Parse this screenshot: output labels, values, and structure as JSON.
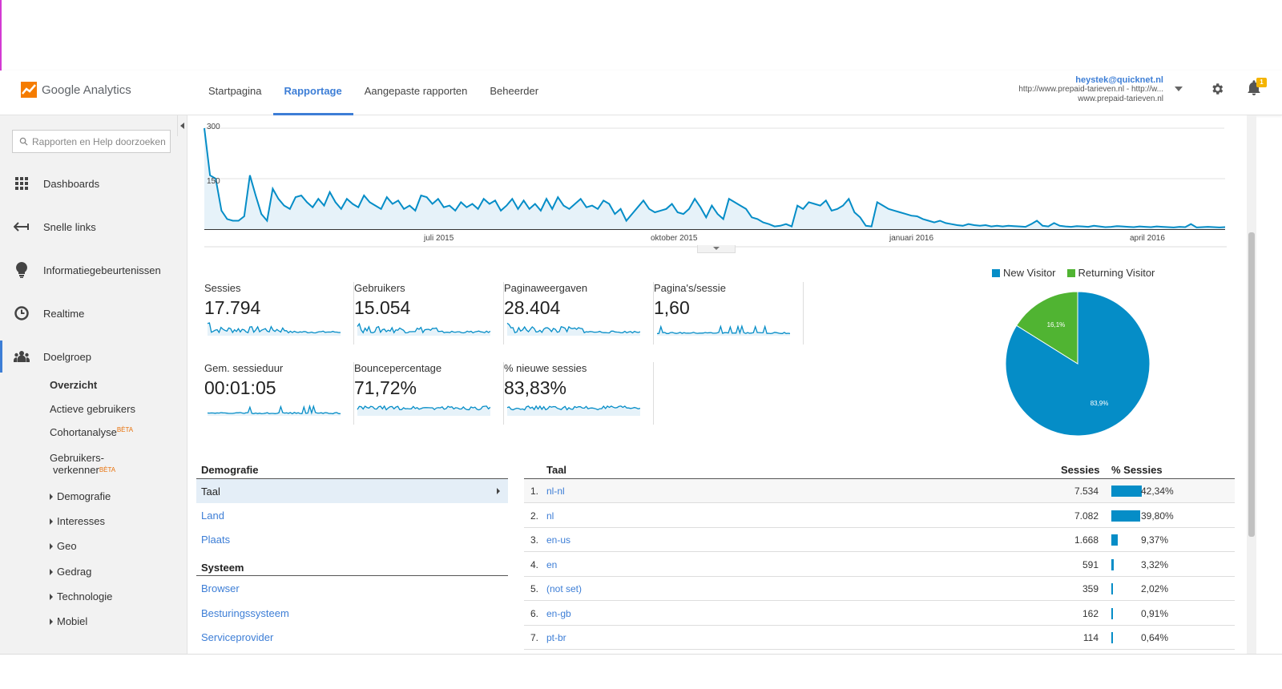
{
  "app": {
    "name": "Google Analytics"
  },
  "nav": {
    "tabs": [
      "Startpagina",
      "Rapportage",
      "Aangepaste rapporten",
      "Beheerder"
    ],
    "active": 1
  },
  "account": {
    "email": "heystek@quicknet.nl",
    "line1": "http://www.prepaid-tarieven.nl - http://w...",
    "line2": "www.prepaid-tarieven.nl"
  },
  "notifications": {
    "count": "1"
  },
  "sidebar": {
    "search_placeholder": "Rapporten en Help doorzoeken",
    "items": [
      {
        "label": "Dashboards",
        "icon": "grid-icon"
      },
      {
        "label": "Snelle links",
        "icon": "shortcut-arrow-icon"
      },
      {
        "label": "Informatiegebeurtenissen",
        "icon": "lightbulb-icon"
      },
      {
        "label": "Realtime",
        "icon": "clock-icon"
      },
      {
        "label": "Doelgroep",
        "icon": "people-icon"
      }
    ],
    "subitems": {
      "overzicht": "Overzicht",
      "actieve": "Actieve gebruikers",
      "cohort": "Cohortanalyse",
      "cohort_beta": "BÈTA",
      "verkenner_1": "Gebruikers-",
      "verkenner_2": "verkenner",
      "verkenner_beta": "BÈTA",
      "demografie": "Demografie",
      "interesses": "Interesses",
      "geo": "Geo",
      "gedrag": "Gedrag",
      "technologie": "Technologie",
      "mobiel": "Mobiel"
    }
  },
  "chart_data": {
    "type": "line",
    "series": [
      {
        "values": [
          300,
          160,
          150,
          55,
          30,
          25,
          25,
          38,
          160,
          100,
          45,
          25,
          120,
          90,
          70,
          60,
          95,
          100,
          80,
          65,
          90,
          70,
          110,
          80,
          60,
          90,
          75,
          65,
          100,
          80,
          70,
          60,
          95,
          75,
          85,
          60,
          70,
          55,
          100,
          95,
          75,
          90,
          65,
          70,
          55,
          80,
          65,
          75,
          60,
          90,
          75,
          85,
          55,
          70,
          90,
          60,
          85,
          60,
          75,
          55,
          90,
          60,
          95,
          70,
          60,
          75,
          90,
          65,
          70,
          60,
          85,
          75,
          45,
          60,
          25,
          45,
          65,
          85,
          60,
          50,
          55,
          60,
          75,
          50,
          45,
          60,
          90,
          65,
          35,
          70,
          45,
          30,
          90,
          80,
          70,
          60,
          35,
          30,
          20,
          15,
          8,
          10,
          15,
          8,
          70,
          60,
          80,
          75,
          70,
          85,
          55,
          60,
          70,
          90,
          50,
          35,
          10,
          8,
          80,
          70,
          60,
          55,
          50,
          45,
          40,
          38,
          30,
          25,
          20,
          25,
          18,
          15,
          12,
          10,
          15,
          12,
          10,
          12,
          8,
          10,
          8,
          10,
          9,
          8,
          7,
          15,
          25,
          10,
          8,
          18,
          10,
          8,
          7,
          9,
          8,
          7,
          10,
          8,
          6,
          7,
          9,
          8,
          7,
          6,
          8,
          7,
          6,
          8,
          7,
          6,
          5,
          7,
          6,
          15,
          5,
          6,
          7,
          6,
          5,
          6
        ]
      }
    ],
    "y_ticks": [
      "300",
      "150"
    ],
    "x_ticks": [
      "juli 2015",
      "oktober 2015",
      "januari 2016",
      "april 2016"
    ],
    "ylim": [
      0,
      300
    ],
    "grid": true
  },
  "metrics": [
    {
      "name": "Sessies",
      "value": "17.794"
    },
    {
      "name": "Gebruikers",
      "value": "15.054"
    },
    {
      "name": "Paginaweergaven",
      "value": "28.404"
    },
    {
      "name": "Pagina's/sessie",
      "value": "1,60"
    },
    {
      "name": "Gem. sessieduur",
      "value": "00:01:05"
    },
    {
      "name": "Bouncepercentage",
      "value": "71,72%"
    },
    {
      "name": "% nieuwe sessies",
      "value": "83,83%"
    }
  ],
  "pie": {
    "legend": [
      "New Visitor",
      "Returning Visitor"
    ],
    "slices": [
      {
        "label": "83,9%",
        "value": 83.9,
        "color": "#058dc7"
      },
      {
        "label": "16,1%",
        "value": 16.1,
        "color": "#50b432"
      }
    ]
  },
  "demografie": {
    "title": "Demografie",
    "links": [
      "Taal",
      "Land",
      "Plaats"
    ],
    "systeem_title": "Systeem",
    "systeem_links": [
      "Browser",
      "Besturingssysteem",
      "Serviceprovider"
    ]
  },
  "table": {
    "headers": {
      "taal": "Taal",
      "sessies": "Sessies",
      "pct": "% Sessies"
    },
    "rows": [
      {
        "idx": "1.",
        "lang": "nl-nl",
        "sessies": "7.534",
        "pct": "42,34%",
        "frac": 0.4234
      },
      {
        "idx": "2.",
        "lang": "nl",
        "sessies": "7.082",
        "pct": "39,80%",
        "frac": 0.398
      },
      {
        "idx": "3.",
        "lang": "en-us",
        "sessies": "1.668",
        "pct": "9,37%",
        "frac": 0.0937
      },
      {
        "idx": "4.",
        "lang": "en",
        "sessies": "591",
        "pct": "3,32%",
        "frac": 0.0332
      },
      {
        "idx": "5.",
        "lang": "(not set)",
        "sessies": "359",
        "pct": "2,02%",
        "frac": 0.0202
      },
      {
        "idx": "6.",
        "lang": "en-gb",
        "sessies": "162",
        "pct": "0,91%",
        "frac": 0.0091
      },
      {
        "idx": "7.",
        "lang": "pt-br",
        "sessies": "114",
        "pct": "0,64%",
        "frac": 0.0064
      }
    ]
  }
}
